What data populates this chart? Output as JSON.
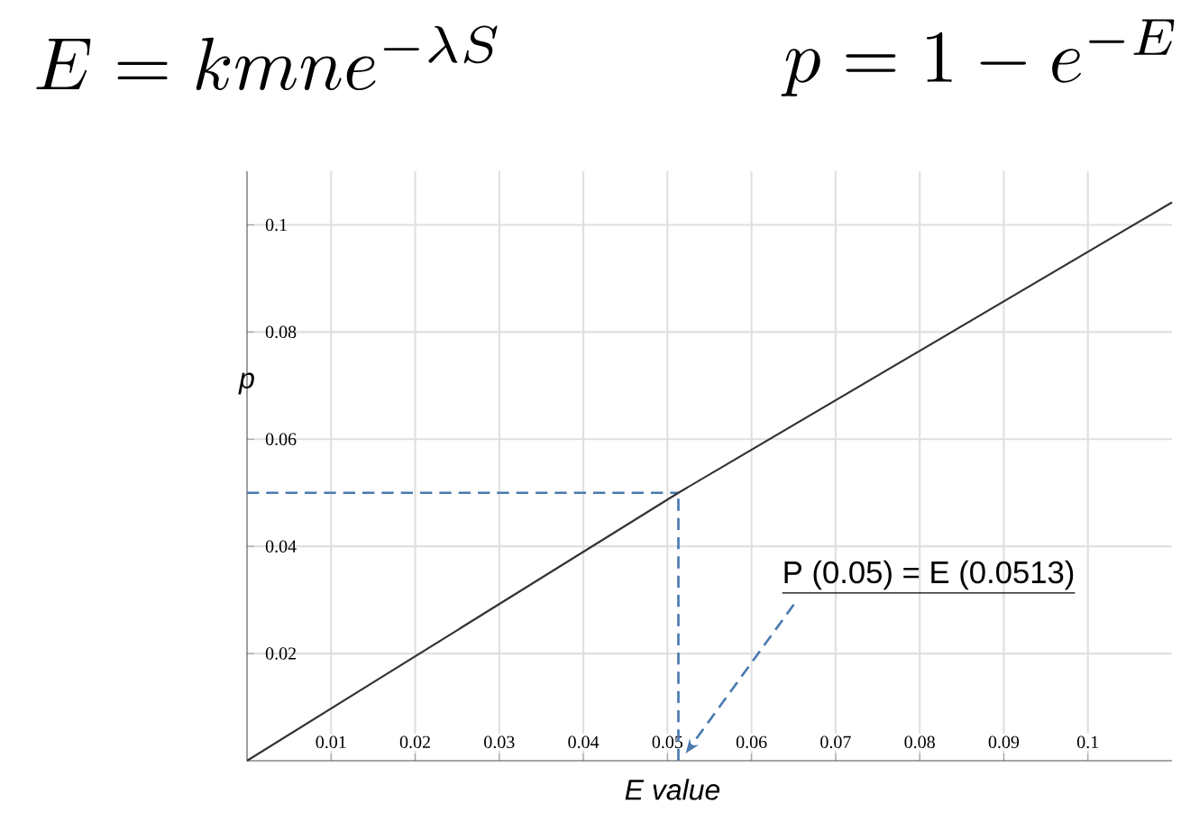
{
  "chart_data": {
    "type": "line",
    "xlabel": "E value",
    "ylabel": "p",
    "annotations": [
      "E = kmne^{-\\lambda S}",
      "p=1-e^{-E}",
      "P (0.05) = E (0.0513)"
    ],
    "x": [
      0,
      0.0513,
      0.11
    ],
    "series": [
      {
        "color": "#333333",
        "values": [
          0,
          0.05,
          0.1042
        ]
      }
    ],
    "xlim": [
      0,
      0.11
    ],
    "ylim": [
      0,
      0.11
    ],
    "xticks": [
      0.01,
      0.02,
      0.03,
      0.04,
      0.05,
      0.06,
      0.07,
      0.08,
      0.09,
      0.1
    ],
    "yticks": [
      0.02,
      0.04,
      0.06,
      0.08,
      0.1
    ],
    "ref_lines": [
      {
        "axis": "y",
        "value": 0.05,
        "color": "#4a7ab0",
        "line_style": "dashed"
      },
      {
        "axis": "x",
        "value": 0.0513,
        "color": "#4a7ab0",
        "line_style": "dashed"
      }
    ],
    "grid": true,
    "marker": "none",
    "line_style": "solid"
  }
}
